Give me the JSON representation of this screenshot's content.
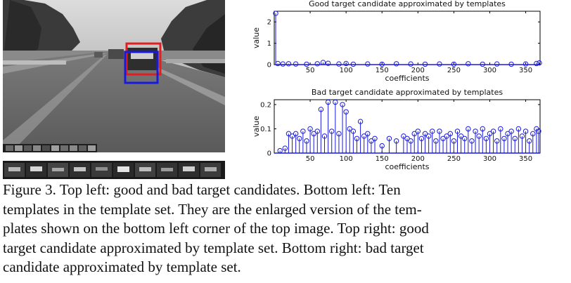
{
  "figure": {
    "caption": "Figure 3. Top left: good and bad target candidates. Bottom left: Ten templates in the template set. They are the enlarged version of the templates shown on the bottom left corner of the top image. Top right: good target candidate approximated by template set. Bottom right: bad target candidate approximated by template set.",
    "caption_lines": [
      "Figure 3. Top left: good and bad target candidates. Bottom left: Ten",
      "templates in the template set. They are the enlarged version of the tem-",
      "plates shown on the bottom left corner of the top image. Top right: good",
      "target candidate approximated by template set. Bottom right: bad target",
      "candidate approximated by template set."
    ],
    "photo_box_colors": {
      "good": "#e02020",
      "bad": "#1a1adc"
    },
    "template_count": 10
  },
  "chart_data": [
    {
      "type": "stem",
      "title": "Good target candidate approximated by templates",
      "xlabel": "coefficients",
      "ylabel": "value",
      "xlim": [
        0,
        370
      ],
      "ylim": [
        0,
        2.5
      ],
      "xticks": [
        50,
        100,
        150,
        200,
        250,
        300,
        350
      ],
      "yticks": [
        0,
        1,
        2
      ],
      "series": [
        {
          "color": "#1a1adc",
          "x": [
            2,
            5,
            12,
            20,
            30,
            45,
            60,
            68,
            75,
            90,
            100,
            110,
            130,
            150,
            170,
            190,
            210,
            230,
            250,
            270,
            290,
            310,
            330,
            350,
            365,
            369
          ],
          "values": [
            2.4,
            0.05,
            0.03,
            0.04,
            0.03,
            0.02,
            0.04,
            0.1,
            0.06,
            0.03,
            0.05,
            0.02,
            0.03,
            0.02,
            0.04,
            0.03,
            0.02,
            0.03,
            0.02,
            0.04,
            0.02,
            0.03,
            0.02,
            0.03,
            0.05,
            0.08
          ]
        }
      ]
    },
    {
      "type": "stem",
      "title": "Bad target candidate approximated by templates",
      "xlabel": "coefficients",
      "ylabel": "value",
      "xlim": [
        0,
        370
      ],
      "ylim": [
        0,
        0.22
      ],
      "xticks": [
        50,
        100,
        150,
        200,
        250,
        300,
        350
      ],
      "yticks": [
        0,
        0.1,
        0.2
      ],
      "series": [
        {
          "color": "#1a1adc",
          "x": [
            8,
            15,
            20,
            25,
            30,
            35,
            40,
            45,
            50,
            55,
            60,
            65,
            70,
            75,
            80,
            85,
            90,
            95,
            100,
            105,
            110,
            115,
            120,
            125,
            130,
            135,
            140,
            150,
            160,
            170,
            180,
            185,
            190,
            195,
            200,
            205,
            210,
            215,
            220,
            225,
            230,
            235,
            240,
            245,
            250,
            255,
            260,
            265,
            270,
            275,
            280,
            285,
            290,
            295,
            300,
            305,
            310,
            315,
            320,
            325,
            330,
            335,
            340,
            345,
            350,
            355,
            360,
            365,
            368
          ],
          "values": [
            0.01,
            0.02,
            0.08,
            0.07,
            0.08,
            0.06,
            0.09,
            0.05,
            0.1,
            0.08,
            0.09,
            0.18,
            0.07,
            0.21,
            0.09,
            0.21,
            0.08,
            0.2,
            0.17,
            0.1,
            0.09,
            0.06,
            0.13,
            0.07,
            0.08,
            0.05,
            0.06,
            0.03,
            0.06,
            0.05,
            0.07,
            0.06,
            0.05,
            0.08,
            0.09,
            0.06,
            0.08,
            0.07,
            0.09,
            0.05,
            0.09,
            0.06,
            0.07,
            0.08,
            0.05,
            0.09,
            0.07,
            0.06,
            0.1,
            0.05,
            0.09,
            0.07,
            0.1,
            0.06,
            0.08,
            0.09,
            0.05,
            0.1,
            0.06,
            0.08,
            0.09,
            0.06,
            0.1,
            0.07,
            0.09,
            0.05,
            0.08,
            0.1,
            0.09
          ]
        }
      ]
    }
  ]
}
